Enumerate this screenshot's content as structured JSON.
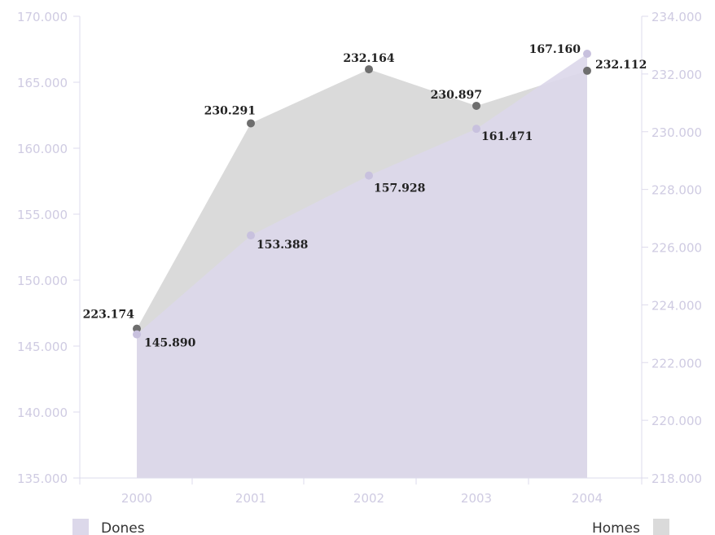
{
  "chart_data": {
    "type": "area",
    "categories": [
      "2000",
      "2001",
      "2002",
      "2003",
      "2004"
    ],
    "y_left": {
      "ylim": [
        135000,
        170000
      ],
      "ticks": [
        "135.000",
        "140.000",
        "145.000",
        "150.000",
        "155.000",
        "160.000",
        "165.000",
        "170.000"
      ]
    },
    "y_right": {
      "ylim": [
        218000,
        234000
      ],
      "ticks": [
        "218.000",
        "220.000",
        "222.000",
        "224.000",
        "226.000",
        "228.000",
        "230.000",
        "232.000",
        "234.000"
      ]
    },
    "series": [
      {
        "name": "Dones",
        "axis": "left",
        "values": [
          145890,
          153388,
          157928,
          161471,
          167160
        ],
        "labels": [
          "145.890",
          "153.388",
          "157.928",
          "161.471",
          "167.160"
        ]
      },
      {
        "name": "Homes",
        "axis": "right",
        "values": [
          223174,
          230291,
          232164,
          230897,
          232112
        ],
        "labels": [
          "223.174",
          "230.291",
          "232.164",
          "230.897",
          "232.112"
        ]
      }
    ],
    "grid": false,
    "legend": "bottom"
  },
  "colors": {
    "dones_fill": "#dcd8ea",
    "dones_point": "#c8c1de",
    "homes_fill": "#dadada",
    "homes_point": "#6e6e6e",
    "axis": "#dedbec",
    "tick_text": "#cfcbe2"
  },
  "legend": {
    "left_label": "Dones",
    "right_label": "Homes"
  }
}
